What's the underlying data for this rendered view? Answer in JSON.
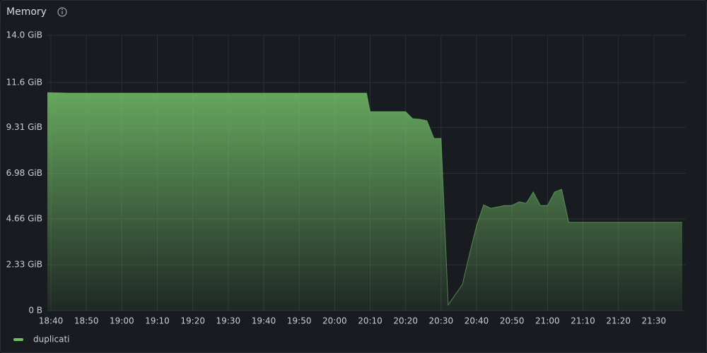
{
  "chart_data": {
    "type": "area",
    "title": "Memory",
    "x": [
      "18:39",
      "18:45",
      "20:09",
      "20:10",
      "20:20",
      "20:22",
      "20:24",
      "20:26",
      "20:28",
      "20:30",
      "20:32",
      "20:36",
      "20:38",
      "20:40",
      "20:42",
      "20:44",
      "20:48",
      "20:50",
      "20:52",
      "20:54",
      "20:56",
      "20:58",
      "21:00",
      "21:02",
      "21:04",
      "21:06",
      "21:38"
    ],
    "series": [
      {
        "name": "duplicati",
        "color": "#73bf69",
        "values": [
          11.09,
          11.06,
          11.06,
          10.12,
          10.12,
          9.76,
          9.73,
          9.66,
          8.76,
          8.76,
          0.29,
          1.33,
          2.87,
          4.31,
          5.38,
          5.2,
          5.35,
          5.35,
          5.53,
          5.46,
          6.03,
          5.35,
          5.35,
          6.03,
          6.17,
          4.49,
          4.49
        ]
      }
    ],
    "xlim": [
      "18:39",
      "21:39"
    ],
    "xticks": [
      "18:40",
      "18:50",
      "19:00",
      "19:10",
      "19:20",
      "19:30",
      "19:40",
      "19:50",
      "20:00",
      "20:10",
      "20:20",
      "20:30",
      "20:40",
      "20:50",
      "21:00",
      "21:10",
      "21:20",
      "21:30"
    ],
    "ylim": [
      0,
      14
    ],
    "yticks": [
      {
        "value": 0,
        "label": "0 B"
      },
      {
        "value": 2.33,
        "label": "2.33 GiB"
      },
      {
        "value": 4.66,
        "label": "4.66 GiB"
      },
      {
        "value": 6.98,
        "label": "6.98 GiB"
      },
      {
        "value": 9.31,
        "label": "9.31 GiB"
      },
      {
        "value": 11.6,
        "label": "11.6 GiB"
      },
      {
        "value": 14,
        "label": "14.0 GiB"
      }
    ],
    "grid": true,
    "legend": "bottom-left"
  }
}
